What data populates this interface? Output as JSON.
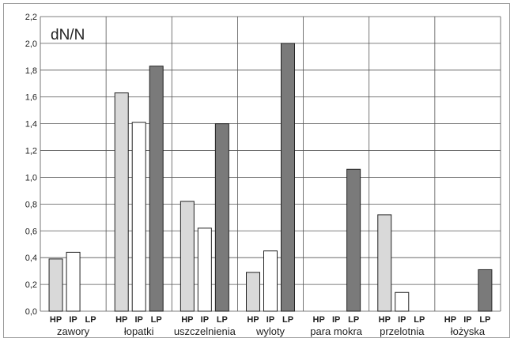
{
  "chart_data": {
    "type": "bar",
    "ylabel": "dN/N",
    "ylim": [
      0,
      2.2
    ],
    "ytick_step": 0.2,
    "ytick_labels": [
      "0,0",
      "0,2",
      "0,4",
      "0,6",
      "0,8",
      "1,0",
      "1,2",
      "1,4",
      "1,6",
      "1,8",
      "2,0",
      "2,2"
    ],
    "grid": true,
    "categories": [
      "zawory",
      "łopatki",
      "uszczelnienia",
      "wyloty",
      "para mokra",
      "przelotnia",
      "łożyska"
    ],
    "sublabels": [
      "HP",
      "IP",
      "LP"
    ],
    "series": [
      {
        "name": "HP",
        "color": "#d9d9d9",
        "values": [
          0.39,
          1.63,
          0.82,
          0.29,
          0.0,
          0.72,
          0.0
        ]
      },
      {
        "name": "IP",
        "color": "#ffffff",
        "values": [
          0.44,
          1.41,
          0.62,
          0.45,
          0.0,
          0.14,
          0.0
        ]
      },
      {
        "name": "LP",
        "color": "#7a7a7a",
        "values": [
          0.0,
          1.83,
          1.4,
          2.0,
          1.06,
          0.0,
          0.31
        ]
      }
    ]
  }
}
